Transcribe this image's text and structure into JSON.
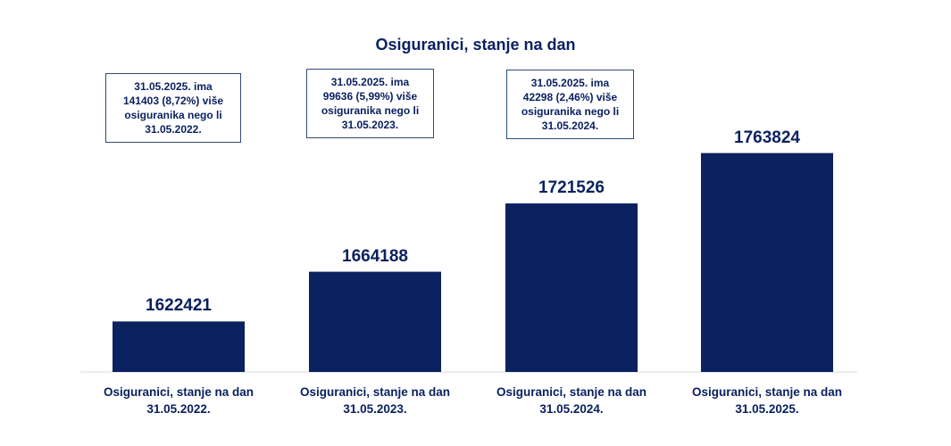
{
  "chart_data": {
    "type": "bar",
    "title": "Osiguranici, stanje na dan",
    "xlabel": "",
    "ylabel": "",
    "categories": [
      "Osiguranici, stanje na dan\n31.05.2022.",
      "Osiguranici, stanje na dan\n31.05.2023.",
      "Osiguranici, stanje na dan\n31.05.2024.",
      "Osiguranici, stanje na dan\n31.05.2025."
    ],
    "values": [
      1622421,
      1664188,
      1721526,
      1763824
    ],
    "data_labels": [
      "1622421",
      "1664188",
      "1721526",
      "1763824"
    ],
    "ylim": [
      1580000,
      1780000
    ],
    "grid": false,
    "legend": "none",
    "bar_color": "#0b2160",
    "annotations": [
      "31.05.2025. ima\n141403 (8,72%) više\nosiguranika nego li\n31.05.2022.",
      "31.05.2025. ima\n99636 (5,99%) više\nosiguranika nego li\n31.05.2023.",
      "31.05.2025. ima\n42298 (2,46%) više\nosiguranika nego li\n31.05.2024."
    ]
  }
}
